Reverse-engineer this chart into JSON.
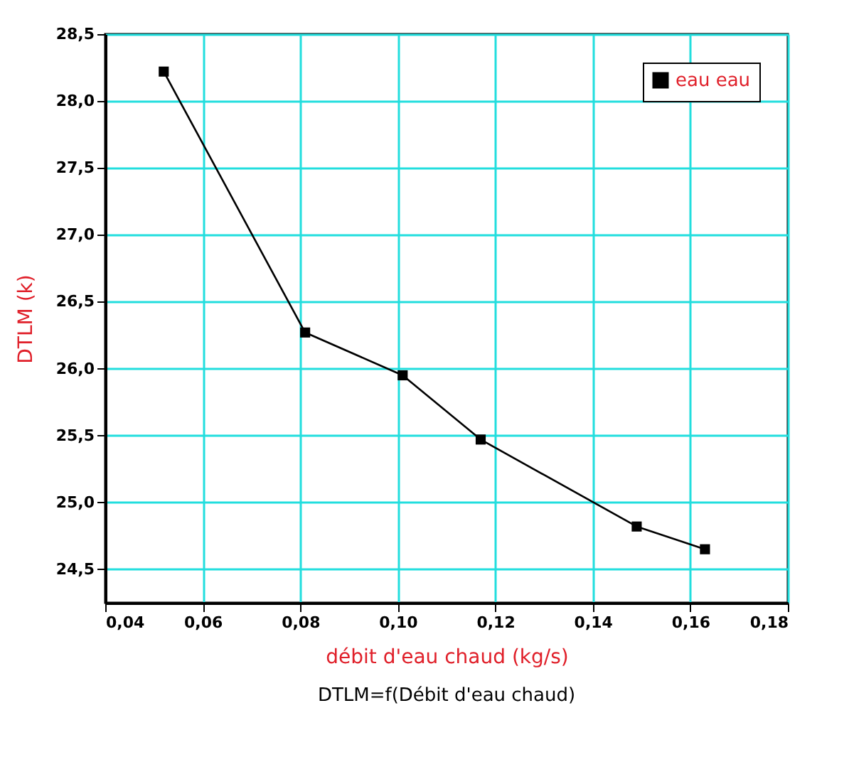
{
  "chart_data": {
    "type": "line",
    "title": "DTLM=f(Débit d'eau chaud)",
    "xlabel": "débit d'eau chaud (kg/s)",
    "ylabel": "DTLM (k)",
    "x": [
      0.052,
      0.081,
      0.101,
      0.117,
      0.149,
      0.163
    ],
    "series": [
      {
        "name": "eau eau",
        "color": "#000000",
        "values": [
          28.22,
          26.27,
          25.95,
          25.47,
          24.82,
          24.65
        ]
      }
    ],
    "xlim": [
      0.04,
      0.18
    ],
    "xticks": [
      {
        "value": 0.04,
        "label": "0,04"
      },
      {
        "value": 0.06,
        "label": "0,06"
      },
      {
        "value": 0.08,
        "label": "0,08"
      },
      {
        "value": 0.1,
        "label": "0,10"
      },
      {
        "value": 0.12,
        "label": "0,12"
      },
      {
        "value": 0.14,
        "label": "0,14"
      },
      {
        "value": 0.16,
        "label": "0,16"
      },
      {
        "value": 0.18,
        "label": "0,18"
      }
    ],
    "ylim": [
      24.25,
      28.5
    ],
    "yticks": [
      {
        "value": 24.5,
        "label": "24,5"
      },
      {
        "value": 25,
        "label": "25,0"
      },
      {
        "value": 25.5,
        "label": "25,5"
      },
      {
        "value": 26,
        "label": "26,0"
      },
      {
        "value": 26.5,
        "label": "26,5"
      },
      {
        "value": 27,
        "label": "27,0"
      },
      {
        "value": 27.5,
        "label": "27,5"
      },
      {
        "value": 28,
        "label": "28,0"
      },
      {
        "value": 28.5,
        "label": "28,5"
      }
    ],
    "grid": true,
    "legend": "top right",
    "marker": "square",
    "line_style": "solid"
  }
}
